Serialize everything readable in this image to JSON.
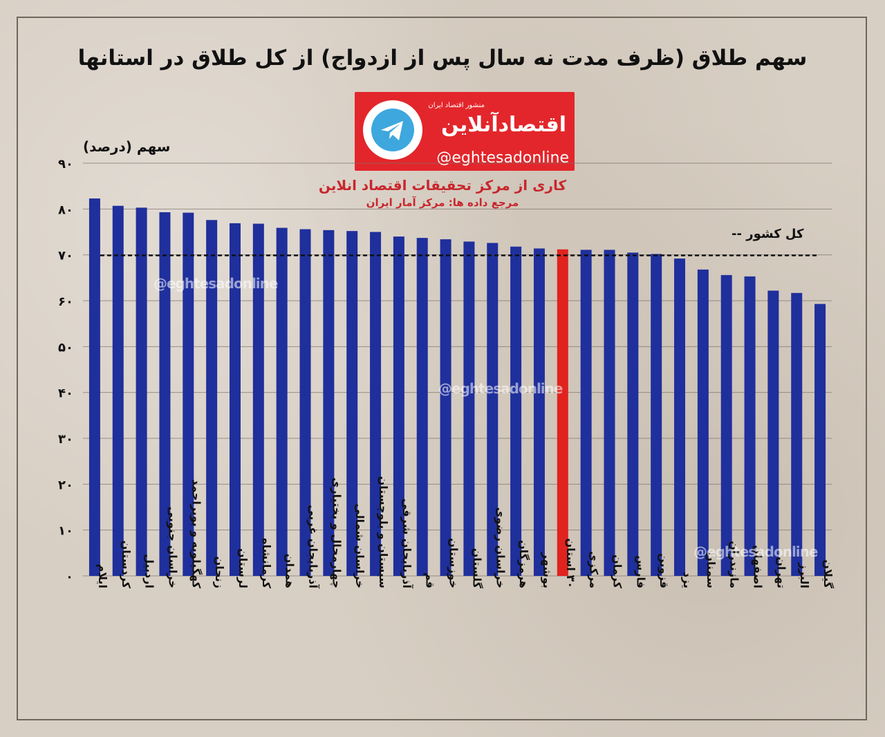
{
  "title": "سهم طلاق (ظرف مدت نه سال پس از ازدواج) از کل طلاق در استانها",
  "logo": {
    "icon": "telegram-icon",
    "brand": "اقتصادآنلاین",
    "brand_sub": "منشور اقتصاد ایران",
    "handle": "@eghtesadonline"
  },
  "credit": "کاری از مرکز تحقیقات اقتصاد انلاین",
  "source": "مرجع داده ها: مرکز آمار ایران",
  "watermark": "@eghtesadonline",
  "colors": {
    "bar": "#1f2f9c",
    "highlight": "#e0231e",
    "reference_line": "#111111"
  },
  "chart_data": {
    "type": "bar",
    "ylabel": "سهم (درصد)",
    "ylim": [
      0,
      90
    ],
    "yticks": [
      "۰",
      "۱۰",
      "۲۰",
      "۳۰",
      "۴۰",
      "۵۰",
      "۶۰",
      "۷۰",
      "۸۰",
      "۹۰"
    ],
    "grid": true,
    "categories": [
      "ایلام",
      "کردستان",
      "اردبیل",
      "خراسان جنوبی",
      "کهگیلویه و بویراحمد",
      "زنجان",
      "لرستان",
      "کرمانشاه",
      "همدان",
      "آذربایجان غربی",
      "چهارمحال و بختیاری",
      "خراسان شمالی",
      "سیستان و بلوچستان",
      "آذربایجان شرقی",
      "قم",
      "خوزستان",
      "گلستان",
      "خراسان رضوی",
      "هرمزگان",
      "بوشهر",
      "۳۰ استان",
      "مرکزی",
      "کرمان",
      "فارس",
      "قزوین",
      "یزد",
      "سمنان",
      "مازندران",
      "اصفهان",
      "تهران",
      "البرز",
      "گیلان"
    ],
    "values": [
      82.3,
      80.7,
      80.3,
      79.3,
      79.2,
      77.6,
      76.9,
      76.8,
      75.9,
      75.6,
      75.4,
      75.2,
      75.0,
      74.0,
      73.7,
      73.4,
      72.9,
      72.6,
      71.8,
      71.4,
      71.2,
      71.1,
      71.1,
      70.5,
      70.2,
      69.2,
      66.8,
      65.6,
      65.3,
      62.2,
      61.7,
      59.3
    ],
    "highlight_category": "۳۰ استان",
    "reference_line": {
      "label": "کل کشور",
      "value": 69.9
    },
    "legend": "top-right"
  }
}
